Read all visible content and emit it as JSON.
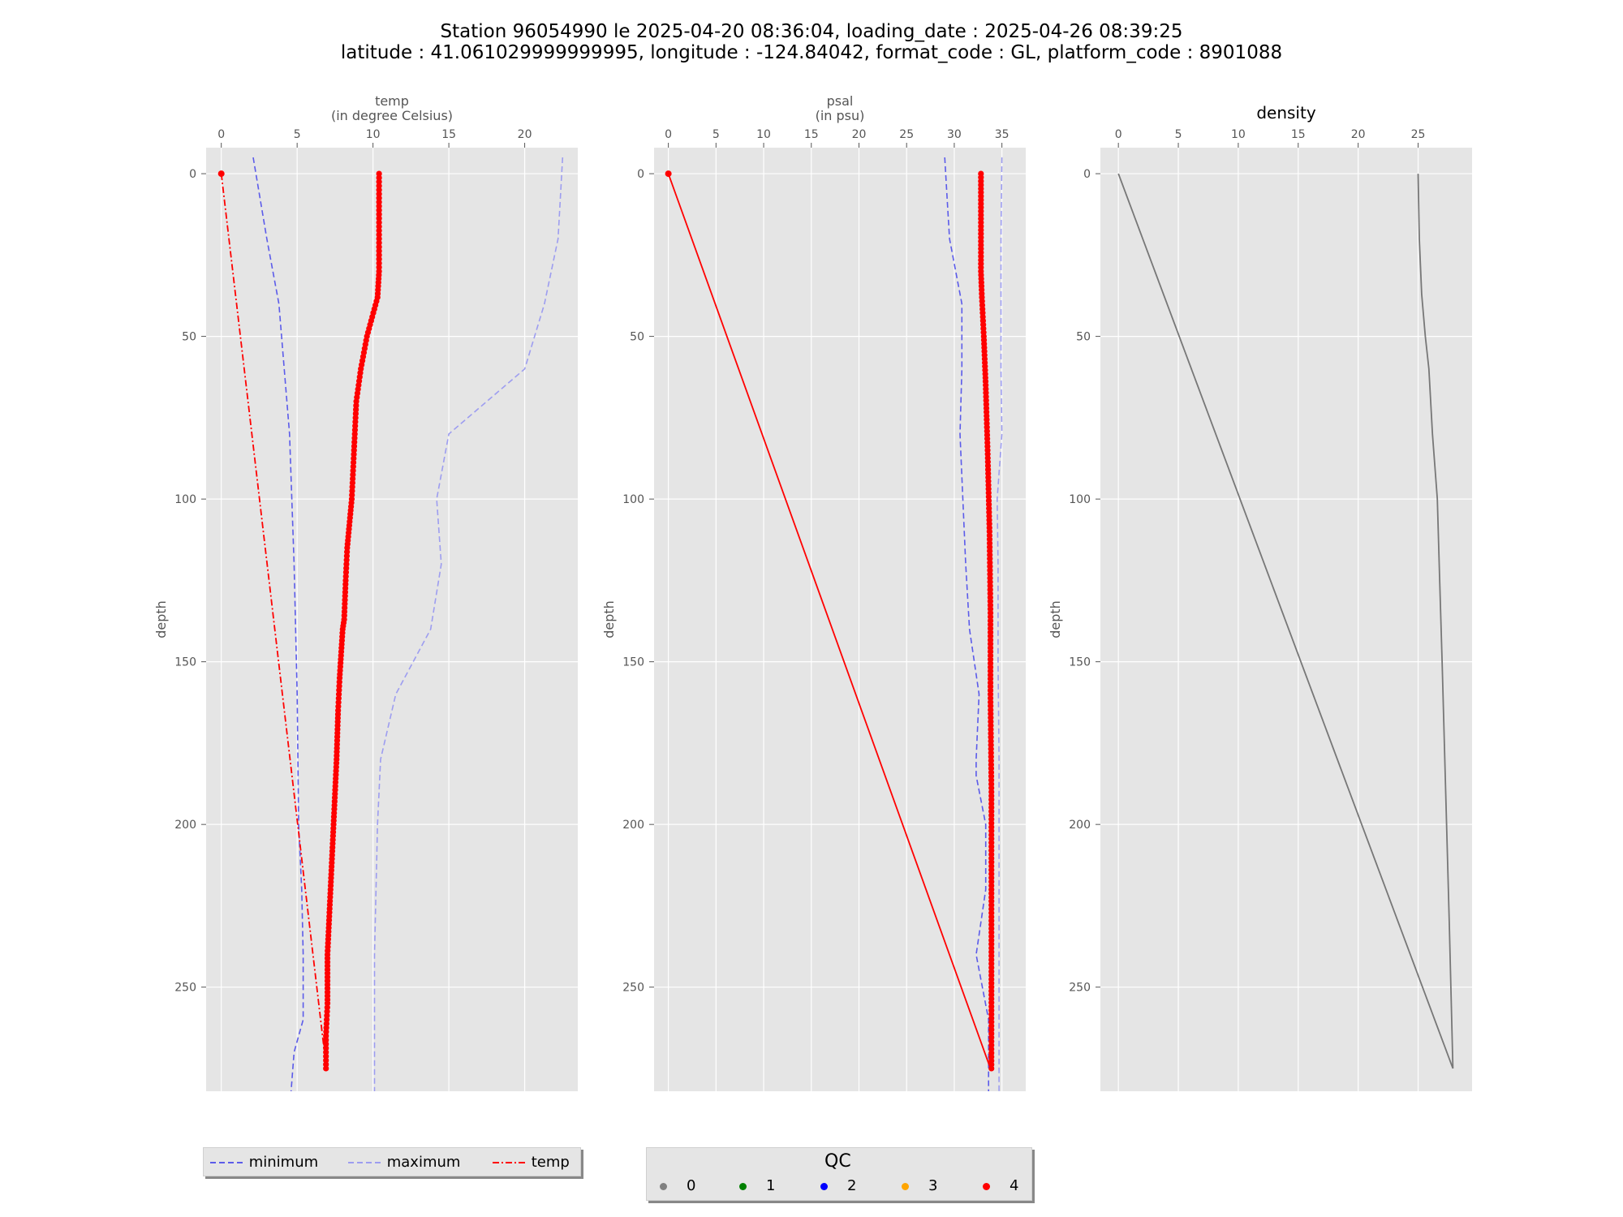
{
  "figure": {
    "title_line1": "Station 96054990 le 2025-04-20 08:36:04, loading_date : 2025-04-26 08:39:25",
    "title_line2": "latitude : 41.061029999999995, longitude : -124.84042, format_code : GL, platform_code : 8901088"
  },
  "colors": {
    "axes_bg": "#e5e5e5",
    "grid": "#ffffff",
    "minimum": "#5b5bea",
    "maximum": "#9d9df0",
    "temp": "#ff0000",
    "density": "#777777",
    "qc0": "#808080",
    "qc1": "#008000",
    "qc2": "#0000ff",
    "qc3": "#ffa500",
    "qc4": "#ff0000"
  },
  "legend_temp": {
    "items": [
      {
        "label": "minimum",
        "style": "dashed",
        "color": "#5b5bea"
      },
      {
        "label": "maximum",
        "style": "dashed",
        "color": "#9d9df0"
      },
      {
        "label": "temp",
        "style": "dashdot",
        "color": "#ff0000"
      }
    ]
  },
  "legend_qc": {
    "title": "QC",
    "items": [
      {
        "label": "0",
        "color": "#808080"
      },
      {
        "label": "1",
        "color": "#008000"
      },
      {
        "label": "2",
        "color": "#0000ff"
      },
      {
        "label": "3",
        "color": "#ffa500"
      },
      {
        "label": "4",
        "color": "#ff0000"
      }
    ]
  },
  "chart_data": [
    {
      "type": "line",
      "title": "temp\n(in degree Celsius)",
      "xlabel": "",
      "ylabel": "depth",
      "xlim": [
        -1,
        23.5
      ],
      "ylim": [
        282,
        -8
      ],
      "y_inverted": true,
      "x_axis_position": "top",
      "xticks": [
        0,
        5,
        10,
        15,
        20
      ],
      "yticks": [
        0,
        50,
        100,
        150,
        200,
        250
      ],
      "grid": true,
      "series": [
        {
          "name": "minimum",
          "style": "dashed",
          "x": [
            2.1,
            3.0,
            3.8,
            4.5,
            4.8,
            5.0,
            5.1,
            5.3,
            5.4,
            5.4,
            4.8,
            4.6
          ],
          "y": [
            -5,
            20,
            40,
            80,
            120,
            160,
            200,
            220,
            240,
            260,
            270,
            282
          ]
        },
        {
          "name": "maximum",
          "style": "dashed",
          "x": [
            22.5,
            22.2,
            21.3,
            20.0,
            15.0,
            14.2,
            14.5,
            13.8,
            11.5,
            10.5,
            10.3,
            10.1,
            10.1
          ],
          "y": [
            -5,
            20,
            40,
            60,
            80,
            100,
            120,
            140,
            160,
            180,
            200,
            240,
            282
          ]
        },
        {
          "name": "temp",
          "style": "dashdot",
          "x": [
            0.0,
            6.8
          ],
          "y": [
            0,
            270
          ]
        },
        {
          "name": "",
          "style": "qc-points",
          "qc": 4,
          "x": [
            10.4,
            10.4,
            10.4,
            10.4,
            10.3,
            9.6,
            9.2,
            8.9,
            8.8,
            8.7,
            8.6,
            8.3,
            8.2,
            8.1,
            8.0,
            7.8,
            7.7,
            7.6,
            7.4,
            7.2,
            7.0,
            7.0,
            6.9,
            6.9
          ],
          "y": [
            0,
            10,
            20,
            30,
            38,
            50,
            60,
            70,
            80,
            90,
            100,
            115,
            125,
            137,
            140,
            155,
            165,
            180,
            200,
            220,
            240,
            255,
            265,
            275
          ]
        }
      ]
    },
    {
      "type": "line",
      "title": "psal\n(in psu)",
      "xlabel": "",
      "ylabel": "depth",
      "xlim": [
        -1.5,
        37.5
      ],
      "ylim": [
        282,
        -8
      ],
      "y_inverted": true,
      "x_axis_position": "top",
      "xticks": [
        0,
        5,
        10,
        15,
        20,
        25,
        30,
        35
      ],
      "yticks": [
        0,
        50,
        100,
        150,
        200,
        250
      ],
      "grid": true,
      "series": [
        {
          "name": "minimum",
          "style": "dashed",
          "x": [
            29.0,
            29.3,
            29.5,
            30.8,
            30.8,
            30.6,
            30.9,
            31.2,
            31.6,
            32.6,
            32.3,
            32.3,
            33.3,
            33.3,
            32.3,
            33.6,
            33.6
          ],
          "y": [
            -5,
            10,
            20,
            40,
            60,
            80,
            100,
            120,
            140,
            160,
            180,
            185,
            200,
            220,
            240,
            260,
            282
          ]
        },
        {
          "name": "maximum",
          "style": "dashed",
          "x": [
            35.0,
            34.9,
            34.9,
            34.9,
            35.0,
            34.5,
            34.6,
            34.6,
            34.7,
            34.7,
            34.7,
            34.7,
            34.7
          ],
          "y": [
            -5,
            20,
            40,
            60,
            80,
            100,
            120,
            150,
            180,
            210,
            240,
            260,
            282
          ]
        },
        {
          "name": "psal",
          "style": "solid",
          "x": [
            0.0,
            33.8
          ],
          "y": [
            0,
            275
          ]
        },
        {
          "name": "",
          "style": "qc-points",
          "qc": 4,
          "x": [
            32.8,
            32.8,
            32.8,
            32.9,
            33.1,
            33.3,
            33.5,
            33.7,
            33.8,
            33.8,
            33.9,
            33.9,
            33.9,
            33.9
          ],
          "y": [
            0,
            15,
            30,
            38,
            50,
            65,
            85,
            110,
            135,
            160,
            190,
            220,
            250,
            275
          ]
        }
      ]
    },
    {
      "type": "line",
      "title": "density",
      "xlabel": "",
      "ylabel": "depth",
      "xlim": [
        -1.5,
        29.5
      ],
      "ylim": [
        282,
        -8
      ],
      "y_inverted": true,
      "x_axis_position": "top",
      "xticks": [
        0,
        5,
        10,
        15,
        20,
        25
      ],
      "yticks": [
        0,
        50,
        100,
        150,
        200,
        250
      ],
      "grid": true,
      "series": [
        {
          "name": "",
          "style": "solid",
          "x": [
            25.0,
            25.1,
            25.3,
            25.6,
            25.9,
            26.2,
            26.6,
            26.8,
            27.0,
            27.3,
            27.6,
            27.9
          ],
          "y": [
            0,
            20,
            37,
            50,
            60,
            80,
            100,
            125,
            150,
            190,
            230,
            275
          ]
        },
        {
          "name": "",
          "style": "solid",
          "x": [
            0.0,
            27.9
          ],
          "y": [
            0,
            275
          ]
        }
      ]
    }
  ]
}
